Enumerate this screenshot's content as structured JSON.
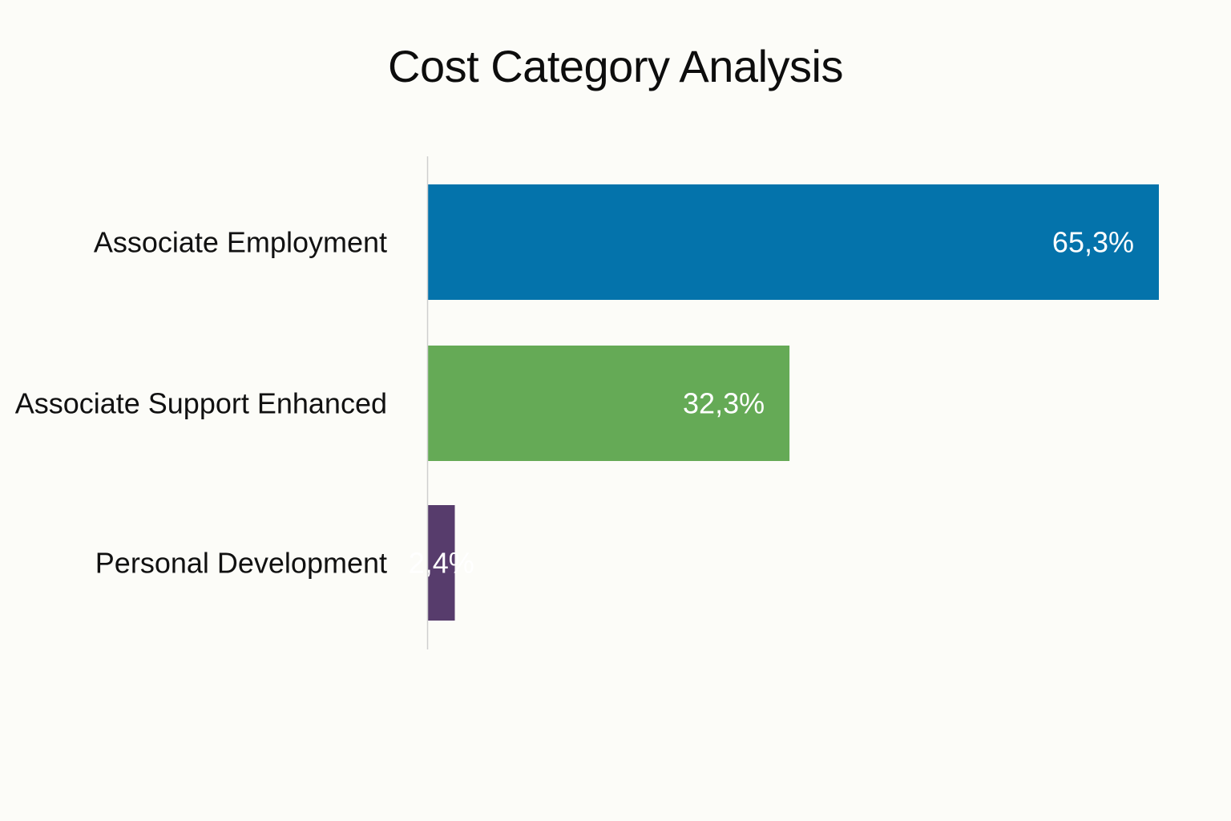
{
  "chart_data": {
    "type": "bar",
    "orientation": "horizontal",
    "title": "Cost Category Analysis",
    "categories": [
      "Associate Employment",
      "Associate Support Enhanced",
      "Personal Development"
    ],
    "values": [
      65.3,
      32.3,
      2.4
    ],
    "value_labels": [
      "65,3%",
      "32,3%",
      "2,4%"
    ],
    "unit": "%",
    "xlim": [
      0,
      65.3
    ],
    "grid": false,
    "legend": "none",
    "colors": [
      "#0473ab",
      "#65aa56",
      "#573c6c"
    ]
  }
}
